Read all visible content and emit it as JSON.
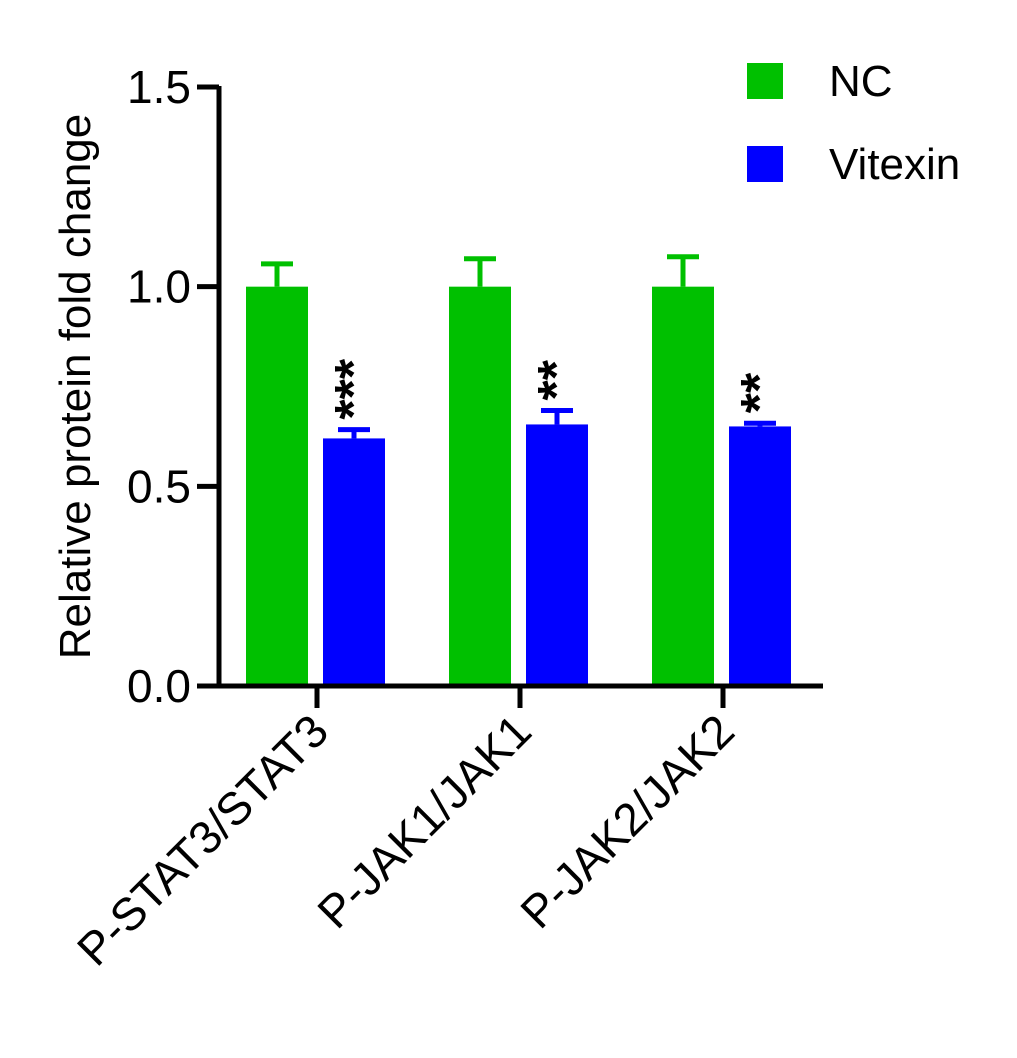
{
  "chart_data": {
    "type": "bar",
    "ylabel": "Relative protein fold change",
    "xlabel": "",
    "ylim": [
      0,
      1.5
    ],
    "yticks": [
      "0.0",
      "0.5",
      "1.0",
      "1.5"
    ],
    "yticks_values": [
      0,
      0.5,
      1.0,
      1.5
    ],
    "categories": [
      "P-STAT3/STAT3",
      "P-JAK1/JAK1",
      "P-JAK2/JAK2"
    ],
    "series": [
      {
        "name": "NC",
        "color": "#00c000",
        "values": [
          1.0,
          1.0,
          1.0
        ],
        "error": [
          0.057,
          0.07,
          0.075
        ]
      },
      {
        "name": "Vitexin",
        "color": "#0000ff",
        "values": [
          0.62,
          0.655,
          0.65
        ],
        "error": [
          0.022,
          0.035,
          0.008
        ]
      }
    ],
    "annotations": [
      "***",
      "**",
      "**"
    ],
    "legend_position": "top-right"
  }
}
